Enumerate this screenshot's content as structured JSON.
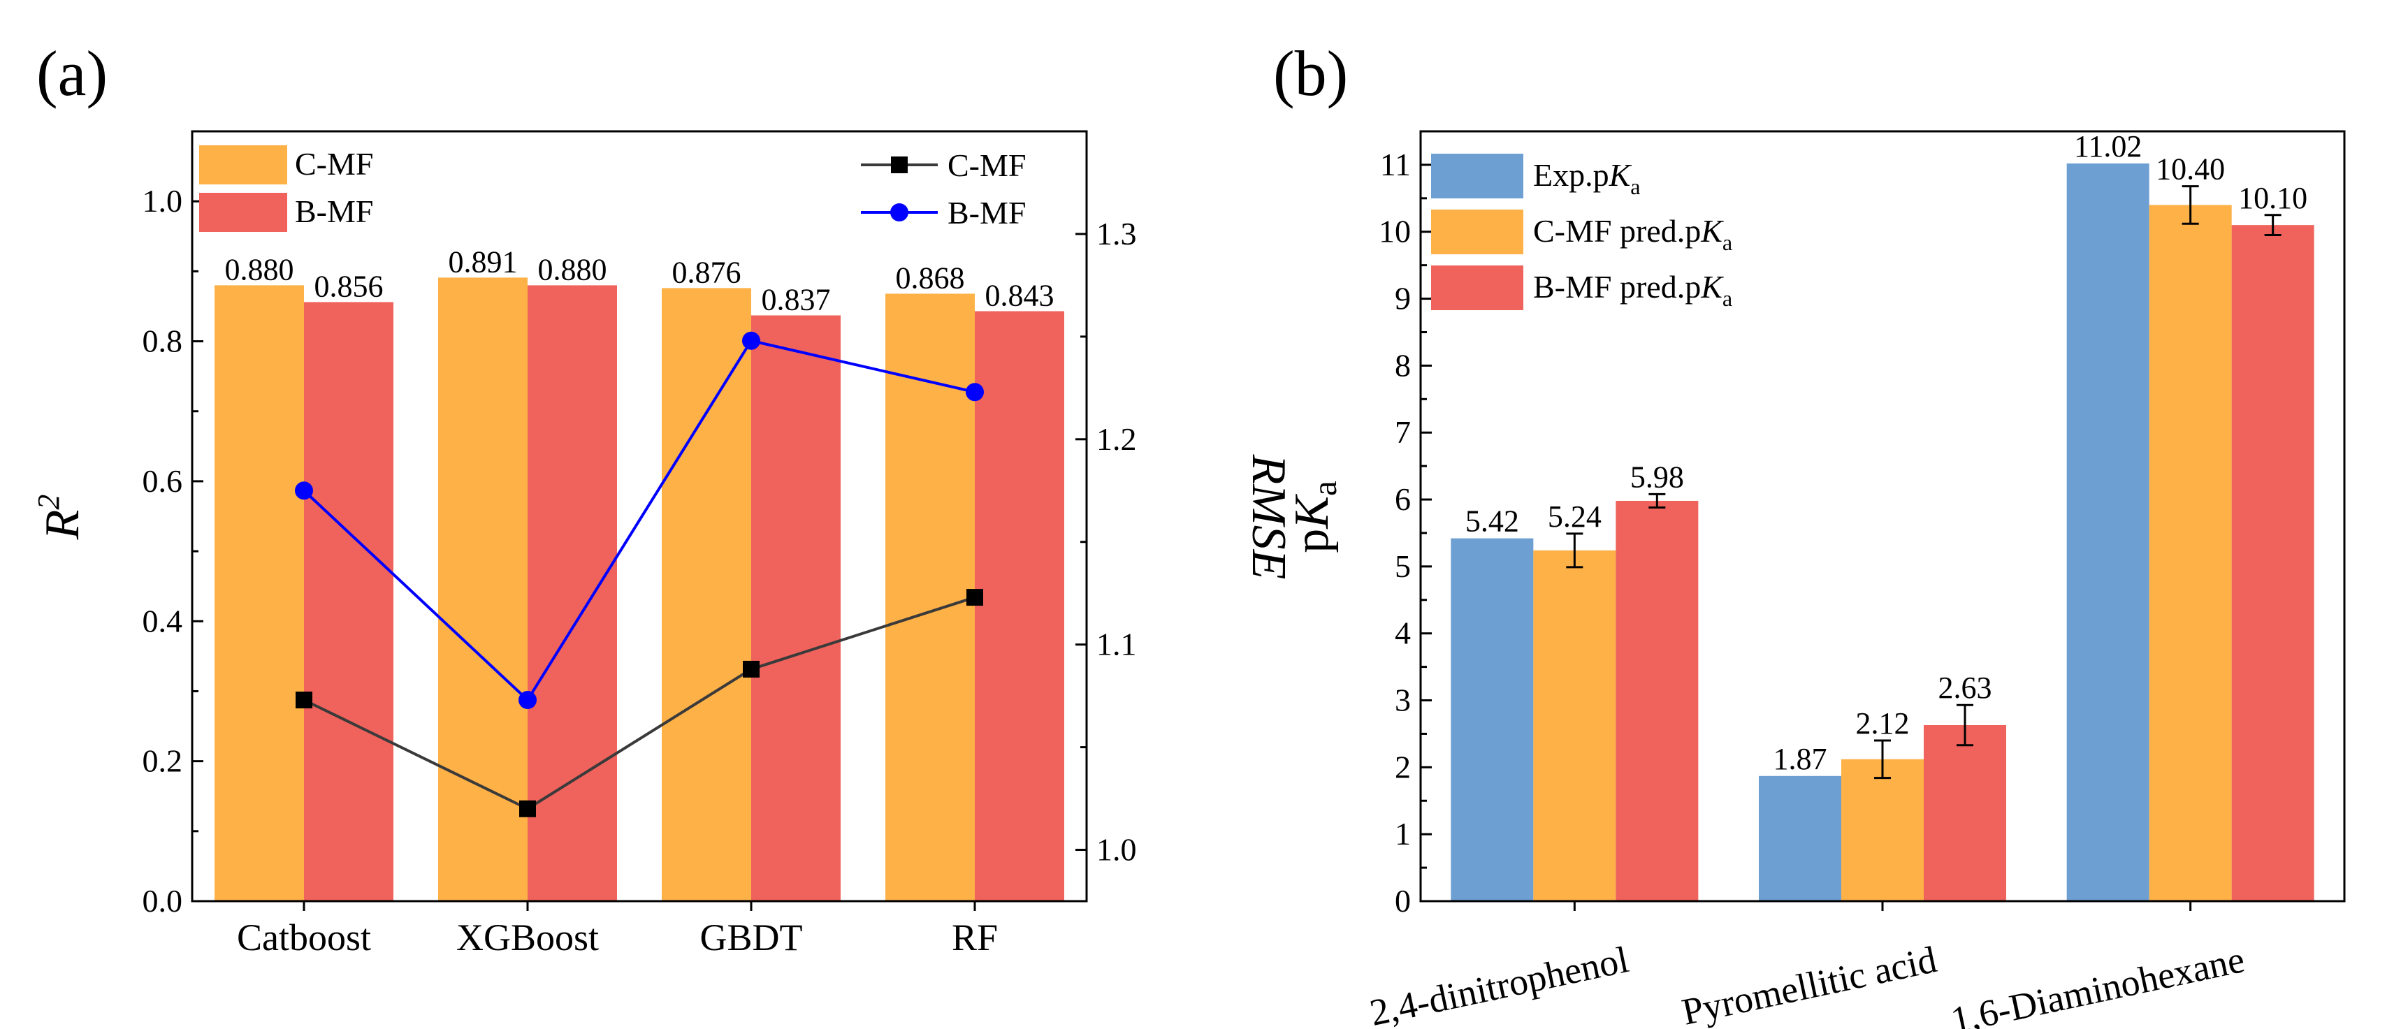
{
  "colors": {
    "orange": "#FDB147",
    "red": "#EF635C",
    "blue": "#6E9FD3",
    "line_cmf": "#3A3A3A",
    "line_bmf": "#0000FF"
  },
  "chart_data": [
    {
      "panel": "(a)",
      "type": "bar",
      "categories": [
        "Catboost",
        "XGBoost",
        "GBDT",
        "RF"
      ],
      "ylabel": "R2",
      "ylim": [
        0,
        1.1
      ],
      "yticks": [
        "0.0",
        "0.2",
        "0.4",
        "0.6",
        "0.8",
        "1.0"
      ],
      "series": [
        {
          "name": "C-MF",
          "values": [
            0.88,
            0.891,
            0.876,
            0.868
          ],
          "labels": [
            "0.880",
            "0.891",
            "0.876",
            "0.868"
          ],
          "color": "orange"
        },
        {
          "name": "B-MF",
          "values": [
            0.856,
            0.88,
            0.837,
            0.843
          ],
          "labels": [
            "0.856",
            "0.880",
            "0.837",
            "0.843"
          ],
          "color": "red"
        }
      ],
      "secondary_axis": {
        "type": "line",
        "ylabel": "RMSE",
        "ylim": [
          0.975,
          1.35
        ],
        "yticks": [
          "1.0",
          "1.1",
          "1.2",
          "1.3"
        ],
        "series": [
          {
            "name": "C-MF",
            "values": [
              1.073,
              1.02,
              1.088,
              1.123
            ],
            "color": "line_cmf",
            "marker": "square"
          },
          {
            "name": "B-MF",
            "values": [
              1.175,
              1.073,
              1.248,
              1.223
            ],
            "color": "line_bmf",
            "marker": "circle"
          }
        ]
      },
      "legend": [
        "top-left",
        "top-right"
      ]
    },
    {
      "panel": "(b)",
      "type": "bar",
      "categories": [
        "2,4-dinitrophenol",
        "Pyromellitic acid",
        "1,6-Diaminohexane"
      ],
      "ylabel": "pKa",
      "ylim": [
        0,
        11.5
      ],
      "yticks": [
        "0",
        "1",
        "2",
        "3",
        "4",
        "5",
        "6",
        "7",
        "8",
        "9",
        "10",
        "11"
      ],
      "series": [
        {
          "name": "Exp.pKa",
          "values": [
            5.42,
            1.87,
            11.02
          ],
          "labels": [
            "5.42",
            "1.87",
            "11.02"
          ],
          "error": [
            0,
            0,
            0
          ],
          "color": "blue"
        },
        {
          "name": "C-MF pred.pKa",
          "values": [
            5.24,
            2.12,
            10.4
          ],
          "labels": [
            "5.24",
            "2.12",
            "10.40"
          ],
          "error": [
            0.25,
            0.28,
            0.28
          ],
          "color": "orange"
        },
        {
          "name": "B-MF pred.pKa",
          "values": [
            5.98,
            2.63,
            10.1
          ],
          "labels": [
            "5.98",
            "2.63",
            "10.10"
          ],
          "error": [
            0.1,
            0.3,
            0.15
          ],
          "color": "red"
        }
      ],
      "legend": "top-left"
    }
  ]
}
